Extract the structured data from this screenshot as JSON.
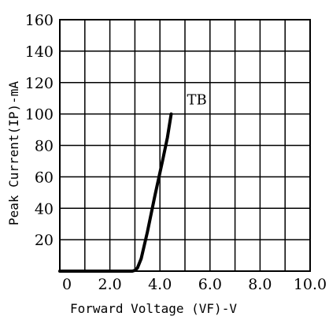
{
  "chart_data": {
    "type": "line",
    "title": "",
    "xlabel": "Forward Voltage (VF)-V",
    "ylabel": "Peak Current(IP)-mA",
    "xlim": [
      0,
      10
    ],
    "ylim": [
      0,
      160
    ],
    "x_ticks": [
      0,
      1,
      2,
      3,
      4,
      5,
      6,
      7,
      8,
      9,
      10
    ],
    "x_tick_labels": [
      "0",
      "",
      "2.0",
      "",
      "4.0",
      "",
      "6.0",
      "",
      "8.0",
      "",
      "10.0"
    ],
    "y_ticks": [
      0,
      20,
      40,
      60,
      80,
      100,
      120,
      140,
      160
    ],
    "y_tick_labels": [
      "",
      "20",
      "40",
      "60",
      "80",
      "100",
      "120",
      "140",
      "160"
    ],
    "grid": true,
    "series": [
      {
        "name": "TB",
        "color": "#000000",
        "x": [
          0,
          2.9,
          3.0,
          3.1,
          3.25,
          3.5,
          3.8,
          4.1,
          4.3,
          4.45
        ],
        "y": [
          0,
          0,
          0.5,
          2,
          8,
          25,
          48,
          70,
          85,
          100
        ]
      }
    ]
  }
}
